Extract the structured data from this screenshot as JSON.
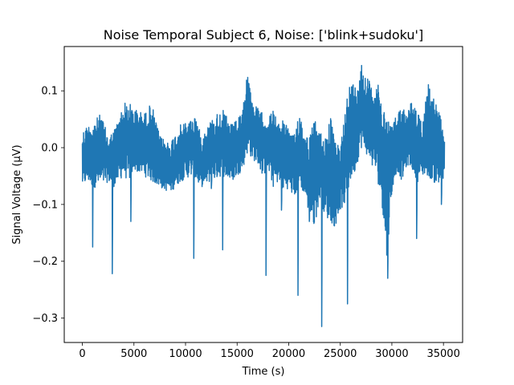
{
  "chart_data": {
    "type": "line",
    "title": "Noise Temporal Subject 6, Noise: ['blink+sudoku']",
    "xlabel": "Time (s)",
    "ylabel": "Signal Voltage (μV)",
    "xlim": [
      -1755,
      36855
    ],
    "ylim": [
      -0.343,
      0.178
    ],
    "xticks": [
      0,
      5000,
      10000,
      15000,
      20000,
      25000,
      30000,
      35000
    ],
    "xtick_labels": [
      "0",
      "5000",
      "10000",
      "15000",
      "20000",
      "25000",
      "30000",
      "35000"
    ],
    "yticks": [
      -0.3,
      -0.2,
      -0.1,
      0.0,
      0.1
    ],
    "ytick_labels": [
      "−0.3",
      "−0.2",
      "−0.1",
      "0.0",
      "0.1"
    ],
    "grid": false,
    "series": [
      {
        "color": "#1f77b4",
        "samples": 35100,
        "x_range": [
          0,
          35100
        ],
        "envelope": {
          "x": [
            0,
            500,
            1000,
            1800,
            2500,
            3000,
            3500,
            4000,
            4500,
            5000,
            6000,
            6700,
            7500,
            8500,
            9500,
            10500,
            11000,
            11500,
            12500,
            13500,
            14500,
            15500,
            16000,
            16500,
            17000,
            17500,
            18000,
            18500,
            19000,
            19500,
            20000,
            20500,
            21000,
            21500,
            22000,
            22500,
            23000,
            23500,
            24000,
            24500,
            25000,
            25500,
            26000,
            26500,
            27000,
            27500,
            28000,
            28500,
            29000,
            29500,
            30000,
            30500,
            31000,
            31500,
            32000,
            32500,
            33000,
            33500,
            34000,
            34500,
            35000
          ],
          "upper": [
            0.03,
            0.04,
            0.045,
            0.06,
            0.02,
            0.03,
            0.05,
            0.08,
            0.08,
            0.07,
            0.06,
            0.08,
            0.02,
            0.01,
            0.04,
            0.05,
            0.06,
            0.02,
            0.05,
            0.07,
            0.04,
            0.06,
            0.14,
            0.08,
            0.07,
            0.06,
            0.05,
            0.07,
            0.04,
            0.06,
            0.03,
            0.02,
            0.07,
            0.03,
            0.02,
            0.05,
            0.03,
            0.02,
            0.06,
            0.01,
            0.0,
            0.08,
            0.12,
            0.11,
            0.155,
            0.13,
            0.11,
            0.12,
            0.09,
            0.06,
            0.04,
            0.06,
            0.08,
            0.06,
            0.09,
            0.06,
            0.05,
            0.12,
            0.09,
            0.07,
            0.03
          ],
          "lower": [
            -0.07,
            -0.06,
            -0.07,
            -0.07,
            -0.06,
            -0.07,
            -0.06,
            -0.05,
            -0.06,
            -0.04,
            -0.05,
            -0.06,
            -0.07,
            -0.08,
            -0.06,
            -0.05,
            -0.06,
            -0.07,
            -0.06,
            -0.05,
            -0.06,
            -0.04,
            -0.01,
            -0.02,
            -0.03,
            -0.05,
            -0.04,
            -0.07,
            -0.06,
            -0.08,
            -0.07,
            -0.09,
            -0.07,
            -0.08,
            -0.12,
            -0.14,
            -0.09,
            -0.12,
            -0.13,
            -0.14,
            -0.11,
            -0.1,
            -0.06,
            -0.04,
            0.0,
            -0.01,
            -0.03,
            -0.05,
            -0.09,
            -0.2,
            -0.08,
            -0.04,
            -0.06,
            -0.03,
            -0.04,
            -0.06,
            -0.05,
            -0.05,
            -0.06,
            -0.07,
            -0.06
          ]
        },
        "spikes": [
          {
            "x": 1000,
            "y": -0.175
          },
          {
            "x": 2900,
            "y": -0.222
          },
          {
            "x": 4700,
            "y": -0.13
          },
          {
            "x": 10800,
            "y": -0.195
          },
          {
            "x": 12500,
            "y": -0.072
          },
          {
            "x": 13600,
            "y": -0.18
          },
          {
            "x": 17800,
            "y": -0.225
          },
          {
            "x": 19300,
            "y": -0.11
          },
          {
            "x": 20900,
            "y": -0.26
          },
          {
            "x": 22000,
            "y": -0.13
          },
          {
            "x": 23200,
            "y": -0.315
          },
          {
            "x": 25700,
            "y": -0.275
          },
          {
            "x": 29600,
            "y": -0.23
          },
          {
            "x": 32400,
            "y": -0.16
          },
          {
            "x": 34800,
            "y": -0.1
          }
        ]
      }
    ]
  }
}
